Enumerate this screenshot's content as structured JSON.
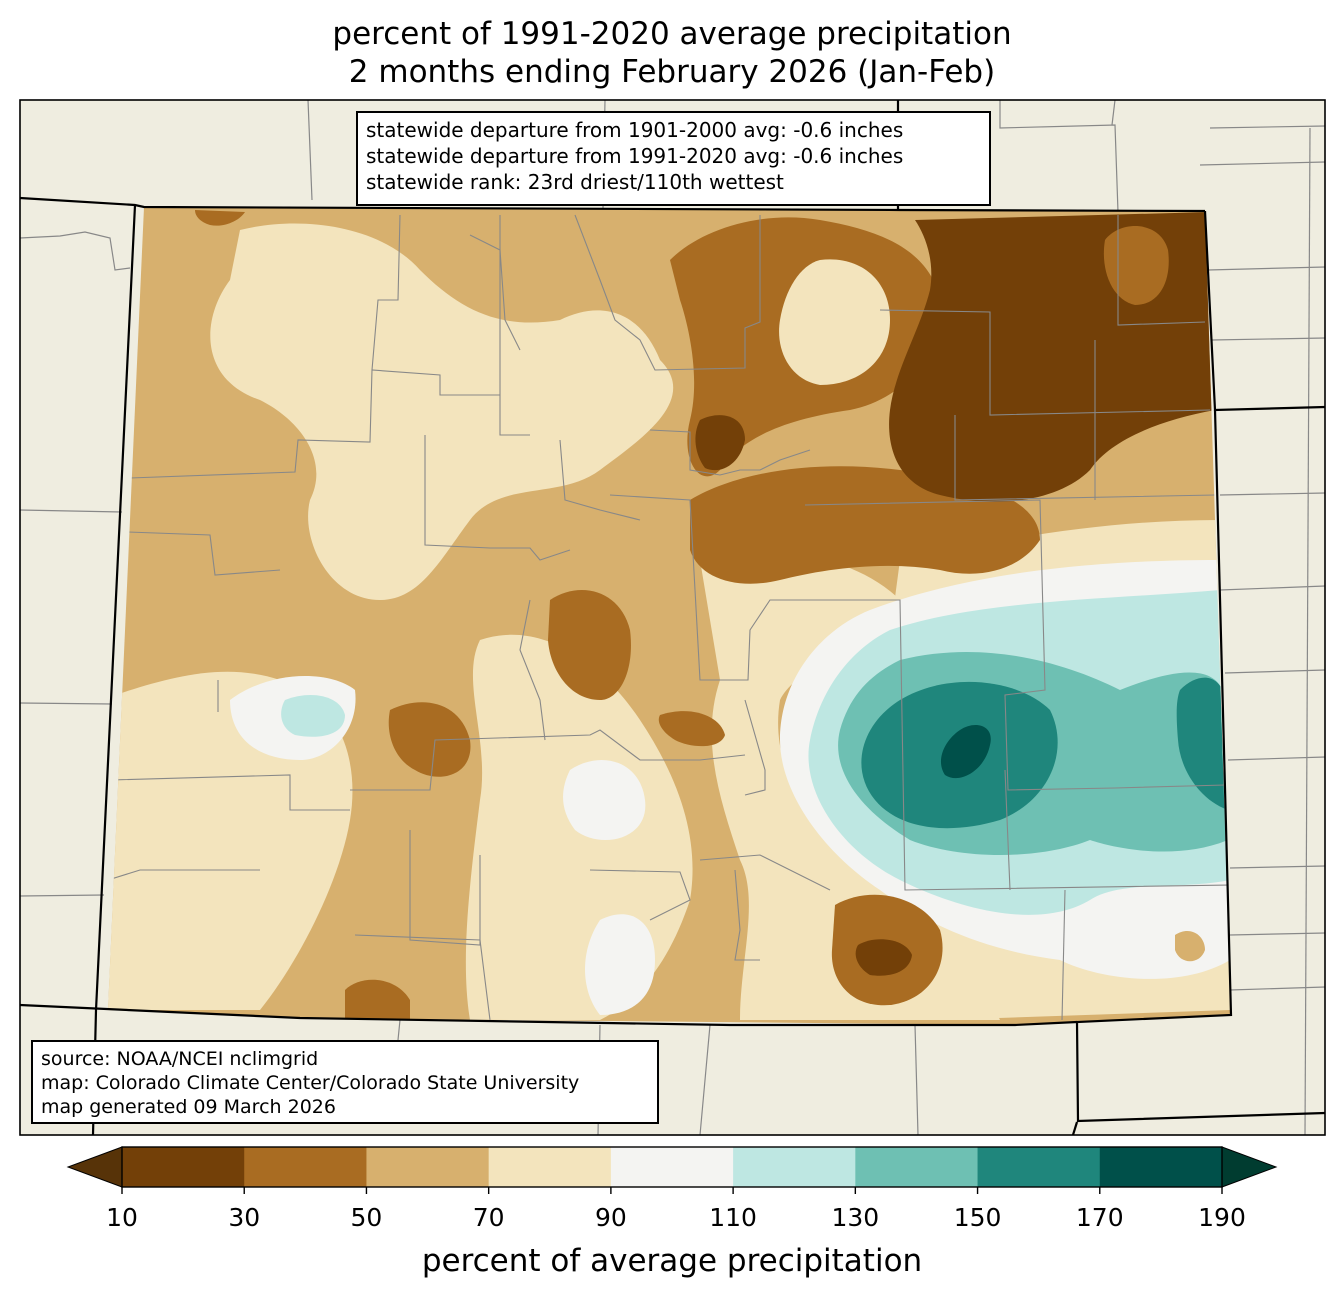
{
  "title": {
    "line1": "percent of 1991-2020 average precipitation",
    "line2": "2 months ending February 2026 (Jan-Feb)"
  },
  "stats": {
    "line1": "statewide departure from 1901-2000 avg: -0.6 inches",
    "line2": "statewide departure from 1991-2020 avg: -0.6 inches",
    "line3": "statewide rank: 23rd driest/110th wettest"
  },
  "source": {
    "line1": "source: NOAA/NCEI nclimgrid",
    "line2": "map: Colorado Climate Center/Colorado State University",
    "line3": "map generated 09 March 2026"
  },
  "colorbar": {
    "label": "percent of average precipitation",
    "ticks": [
      "10",
      "30",
      "50",
      "70",
      "90",
      "110",
      "130",
      "150",
      "170",
      "190"
    ],
    "colors": [
      "#573308",
      "#734008",
      "#a96c22",
      "#d7b06e",
      "#f3e4bd",
      "#f4f4f2",
      "#bee7e2",
      "#6ec0b3",
      "#1f867c",
      "#00504a",
      "#003c30"
    ]
  },
  "colors": {
    "background_land": "#efede0",
    "state_border": "#000000",
    "county_border": "#888888"
  }
}
